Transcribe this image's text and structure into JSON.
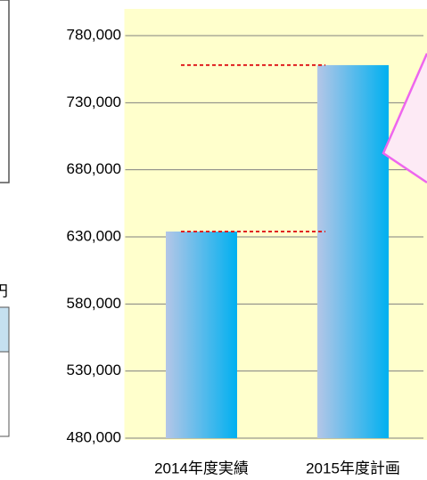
{
  "chart_data": {
    "type": "bar",
    "categories": [
      "2014年度実績",
      "2015年度計画"
    ],
    "values": [
      634000,
      758000
    ],
    "color": "#00b0f0",
    "ylim": [
      480000,
      780000
    ],
    "yticks": [
      {
        "value": 480000,
        "label": "480,000"
      },
      {
        "value": 530000,
        "label": "530,000"
      },
      {
        "value": 580000,
        "label": "580,000"
      },
      {
        "value": 630000,
        "label": "630,000"
      },
      {
        "value": 680000,
        "label": "680,000"
      },
      {
        "value": 730000,
        "label": "730,000"
      },
      {
        "value": 780000,
        "label": "780,000"
      }
    ],
    "grid": true,
    "unit": "円"
  }
}
